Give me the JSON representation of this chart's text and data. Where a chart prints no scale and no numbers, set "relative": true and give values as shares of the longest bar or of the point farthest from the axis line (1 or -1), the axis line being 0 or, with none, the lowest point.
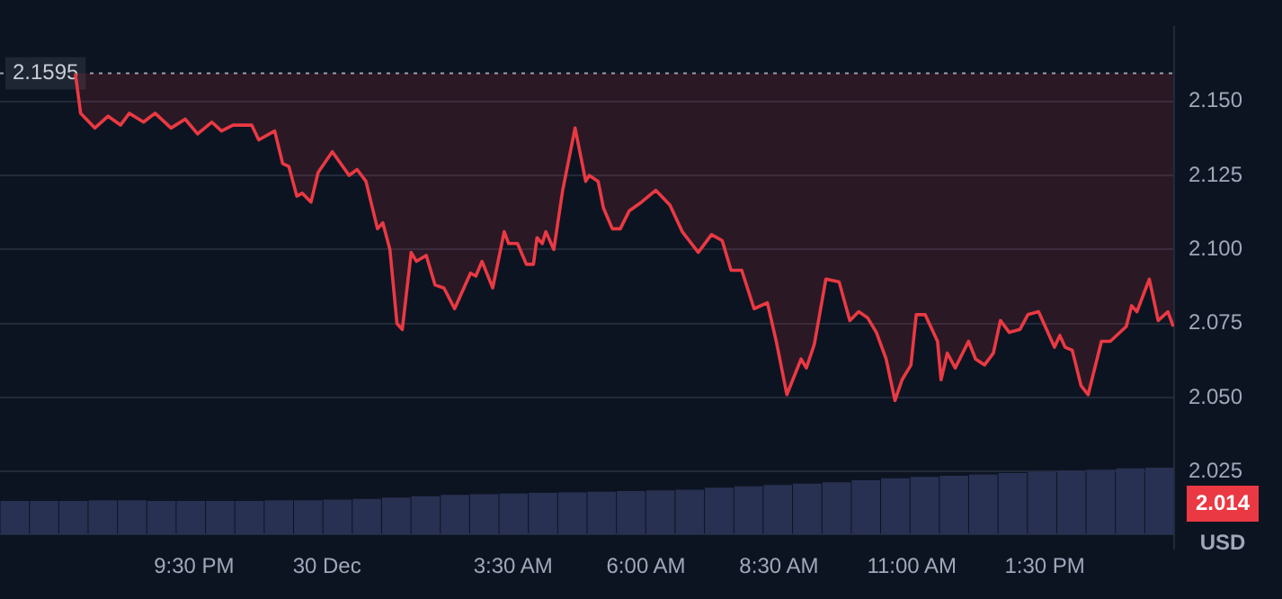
{
  "chart_data": [
    {
      "type": "line",
      "x": [
        "--12-29T19:16",
        "--12-29T19:22",
        "--12-29T19:38",
        "--12-29T19:53",
        "--12-29T20:07",
        "--12-29T20:17",
        "--12-29T20:33",
        "--12-29T20:46",
        "--12-29T21:04",
        "--12-29T21:20",
        "--12-29T21:34",
        "--12-29T21:50",
        "--12-29T22:01",
        "--12-29T22:14",
        "--12-29T22:35",
        "--12-29T22:43",
        "--12-29T23:01",
        "--12-29T23:10",
        "--12-29T23:17",
        "--12-29T23:26",
        "--12-29T23:32",
        "--12-29T23:42",
        "--12-29T23:50",
        "--12-30T00:06",
        "--12-30T00:25",
        "--12-30T00:34",
        "--12-30T00:44",
        "--12-30T00:57",
        "--12-30T01:03",
        "--12-30T01:11",
        "--12-30T01:19",
        "--12-30T01:25",
        "--12-30T01:35",
        "--12-30T01:41",
        "--12-30T01:52",
        "--12-30T02:02",
        "--12-30T02:12",
        "--12-30T02:24",
        "--12-30T02:42",
        "--12-30T02:48",
        "--12-30T02:55",
        "--12-30T03:07",
        "--12-30T03:20",
        "--12-30T03:25",
        "--12-30T03:35",
        "--12-30T03:45",
        "--12-30T03:53",
        "--12-30T03:57",
        "--12-30T04:03",
        "--12-30T04:07",
        "--12-30T04:16",
        "--12-30T04:26",
        "--12-30T04:40",
        "--12-30T04:52",
        "--12-30T04:56",
        "--12-30T05:06",
        "--12-30T05:12",
        "--12-30T05:22",
        "--12-30T05:31",
        "--12-30T05:41",
        "--12-30T05:55",
        "--12-30T06:11",
        "--12-30T06:27",
        "--12-30T06:41",
        "--12-30T06:59",
        "--12-30T07:14",
        "--12-30T07:26",
        "--12-30T07:36",
        "--12-30T07:48",
        "--12-30T08:02",
        "--12-30T08:17",
        "--12-30T08:27",
        "--12-30T08:39",
        "--12-30T08:55",
        "--12-30T09:01",
        "--12-30T09:10",
        "--12-30T09:23",
        "--12-30T09:38",
        "--12-30T09:50",
        "--12-30T10:00",
        "--12-30T10:10",
        "--12-30T10:20",
        "--12-30T10:31",
        "--12-30T10:41",
        "--12-30T10:49",
        "--12-30T10:59",
        "--12-30T11:05",
        "--12-30T11:15",
        "--12-30T11:29",
        "--12-30T11:33",
        "--12-30T11:40",
        "--12-30T11:49",
        "--12-30T12:04",
        "--12-30T12:12",
        "--12-30T12:22",
        "--12-30T12:32",
        "--12-30T12:40",
        "--12-30T12:50",
        "--12-30T13:02",
        "--12-30T13:11",
        "--12-30T13:23",
        "--12-30T13:41",
        "--12-30T13:47",
        "--12-30T13:53",
        "--12-30T14:01",
        "--12-30T14:11",
        "--12-30T14:19",
        "--12-30T14:34",
        "--12-30T14:44",
        "--12-30T15:02",
        "--12-30T15:08",
        "--12-30T15:14",
        "--12-30T15:28",
        "--12-30T15:38",
        "--12-30T15:49",
        "--12-30T15:55"
      ],
      "series": [
        {
          "color": "#ea3943",
          "values": [
            2.1595,
            2.146,
            2.141,
            2.145,
            2.142,
            2.146,
            2.143,
            2.146,
            2.141,
            2.144,
            2.139,
            2.143,
            2.14,
            2.142,
            2.142,
            2.137,
            2.14,
            2.129,
            2.128,
            2.118,
            2.119,
            2.116,
            2.126,
            2.133,
            2.125,
            2.127,
            2.123,
            2.107,
            2.109,
            2.1,
            2.075,
            2.073,
            2.099,
            2.096,
            2.098,
            2.088,
            2.087,
            2.08,
            2.092,
            2.091,
            2.096,
            2.087,
            2.106,
            2.102,
            2.102,
            2.095,
            2.095,
            2.104,
            2.102,
            2.106,
            2.1,
            2.12,
            2.141,
            2.123,
            2.125,
            2.123,
            2.114,
            2.107,
            2.107,
            2.113,
            2.116,
            2.12,
            2.115,
            2.106,
            2.099,
            2.105,
            2.103,
            2.093,
            2.093,
            2.08,
            2.082,
            2.069,
            2.051,
            2.063,
            2.06,
            2.068,
            2.09,
            2.089,
            2.076,
            2.079,
            2.077,
            2.072,
            2.063,
            2.049,
            2.056,
            2.061,
            2.078,
            2.078,
            2.069,
            2.056,
            2.065,
            2.06,
            2.069,
            2.063,
            2.061,
            2.065,
            2.076,
            2.072,
            2.073,
            2.078,
            2.079,
            2.067,
            2.071,
            2.067,
            2.066,
            2.054,
            2.051,
            2.069,
            2.069,
            2.074,
            2.081,
            2.079,
            2.09,
            2.076,
            2.079,
            2.074
          ]
        }
      ],
      "xlim": [
        "--12-29T17:51",
        "--12-30T15:56"
      ],
      "xticks": [
        {
          "value": "--12-29T21:30",
          "label": "9:30 PM"
        },
        {
          "value": "--12-30T00:00",
          "label": "30 Dec"
        },
        {
          "value": "--12-30T03:30",
          "label": "3:30 AM"
        },
        {
          "value": "--12-30T06:00",
          "label": "6:00 AM"
        },
        {
          "value": "--12-30T08:30",
          "label": "8:30 AM"
        },
        {
          "value": "--12-30T11:00",
          "label": "11:00 AM"
        },
        {
          "value": "--12-30T13:30",
          "label": "1:30 PM"
        }
      ],
      "ylim": [
        1.999,
        2.175
      ],
      "yticks": [
        {
          "value": 2.025,
          "label": "2.025"
        },
        {
          "value": 2.05,
          "label": "2.050"
        },
        {
          "value": 2.075,
          "label": "2.075"
        },
        {
          "value": 2.1,
          "label": "2.100"
        },
        {
          "value": 2.125,
          "label": "2.125"
        },
        {
          "value": 2.15,
          "label": "2.150"
        }
      ],
      "ref_lines": [
        {
          "axis": "y",
          "value": 2.1595,
          "label": "2.1595",
          "color": "#9aa3b5",
          "line_style": "dotted"
        }
      ],
      "annotations": [
        "2.014",
        "USD"
      ],
      "grid": "y",
      "legend": false,
      "marker": "none",
      "line_style": "solid"
    },
    {
      "type": "bar",
      "relative": true,
      "categories": [
        null,
        null,
        null,
        null,
        null,
        null,
        null,
        null,
        null,
        null,
        null,
        null,
        null,
        null,
        null,
        null,
        null,
        null,
        null,
        null,
        null,
        null,
        null,
        null,
        null,
        null,
        null,
        null,
        null,
        null,
        null,
        null,
        null,
        null,
        null,
        null,
        null,
        null,
        null,
        null
      ],
      "values": [
        0.5,
        0.5,
        0.5,
        0.51,
        0.51,
        0.5,
        0.5,
        0.5,
        0.5,
        0.51,
        0.51,
        0.52,
        0.53,
        0.55,
        0.57,
        0.59,
        0.6,
        0.61,
        0.62,
        0.63,
        0.64,
        0.65,
        0.66,
        0.67,
        0.7,
        0.72,
        0.74,
        0.76,
        0.78,
        0.81,
        0.84,
        0.86,
        0.88,
        0.9,
        0.92,
        0.94,
        0.96,
        0.97,
        0.99,
        1.0
      ],
      "color": "#283152",
      "legend": false
    }
  ]
}
